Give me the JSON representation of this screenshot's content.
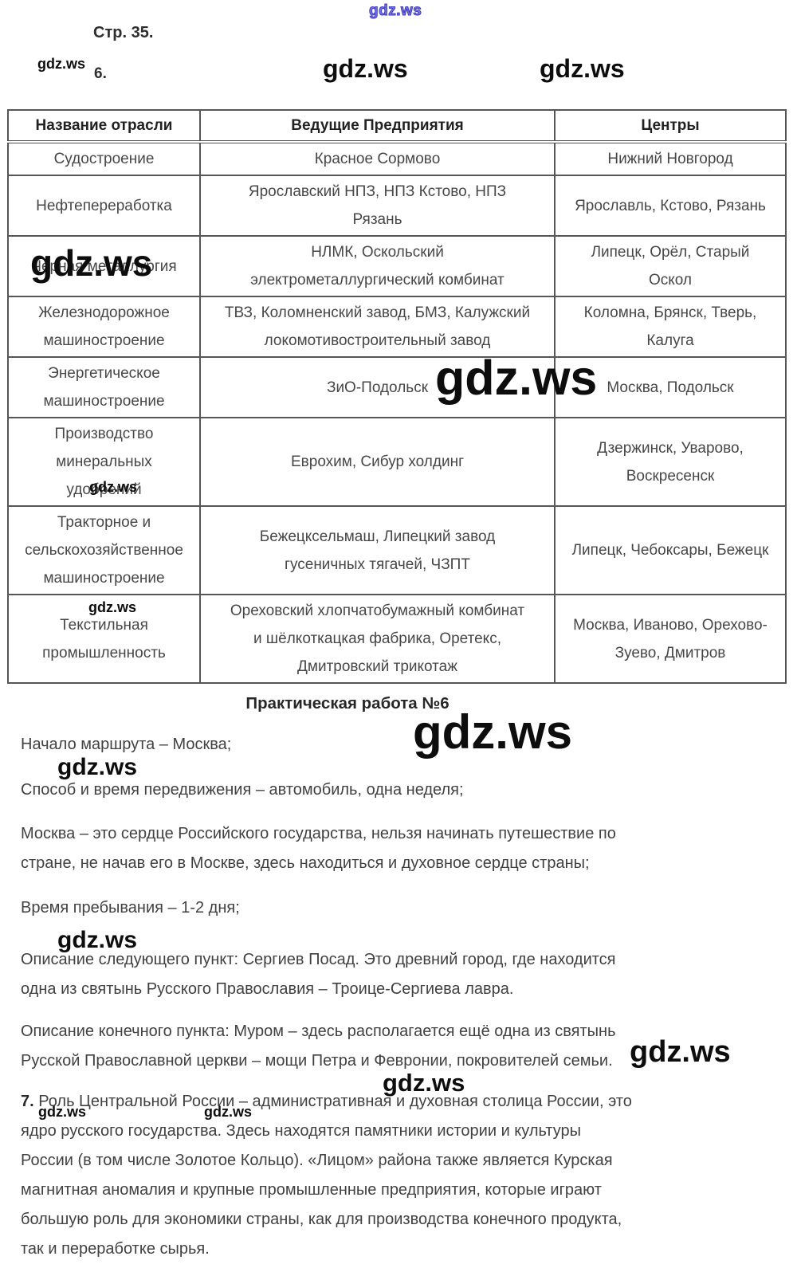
{
  "watermark": {
    "text": "gdz.ws",
    "blue_color": "#3d39c0",
    "black_color": "#0d0d0d"
  },
  "header": {
    "page_label": "Стр. 35.",
    "task_label": "6."
  },
  "table": {
    "headers": [
      "Название отрасли",
      "Ведущие Предприятия",
      "Центры"
    ],
    "rows": [
      {
        "industry": [
          "Судостроение"
        ],
        "enterprises": [
          "Красное Сормово"
        ],
        "centers": [
          "Нижний Новгород"
        ]
      },
      {
        "industry": [
          "Нефтепереработка"
        ],
        "enterprises": [
          "Ярославский НПЗ, НПЗ Кстово, НПЗ",
          "Рязань"
        ],
        "centers": [
          "Ярославль, Кстово, Рязань"
        ]
      },
      {
        "industry": [
          "Черная металлургия"
        ],
        "enterprises": [
          "НЛМК, Оскольский",
          "электрометаллургический комбинат"
        ],
        "centers": [
          "Липецк, Орёл, Старый",
          "Оскол"
        ]
      },
      {
        "industry": [
          "Железнодорожное",
          "машиностроение"
        ],
        "enterprises": [
          "ТВЗ, Коломненский завод, БМЗ, Калужский",
          "локомотивостроительный завод"
        ],
        "centers": [
          "Коломна, Брянск, Тверь,",
          "Калуга"
        ]
      },
      {
        "industry": [
          "Энергетическое",
          "машиностроение"
        ],
        "enterprises": [
          "ЗиО-Подольск"
        ],
        "centers": [
          "Москва, Подольск"
        ]
      },
      {
        "industry": [
          "Производство",
          "минеральных",
          "удобрений"
        ],
        "enterprises": [
          "Еврохим, Сибур холдинг"
        ],
        "centers": [
          "Дзержинск, Уварово,",
          "Воскресенск"
        ]
      },
      {
        "industry": [
          "Тракторное и",
          "сельскохозяйственное",
          "машиностроение"
        ],
        "enterprises": [
          "Бежецксельмаш, Липецкий завод",
          "гусеничных тягачей, ЧЗПТ"
        ],
        "centers": [
          "Липецк, Чебоксары, Бежецк"
        ]
      },
      {
        "industry": [
          "Текстильная",
          "промышленность"
        ],
        "enterprises": [
          "Ореховский хлопчатобумажный комбинат",
          "и шёлкоткацкая фабрика, Оретекс,",
          "Дмитровский трикотаж"
        ],
        "centers": [
          "Москва, Иваново, Орехово-",
          "Зуево, Дмитров"
        ]
      }
    ]
  },
  "practical_work": {
    "title": "Практическая работа №6",
    "paragraphs": [
      [
        "Начало маршрута – Москва;"
      ],
      [
        "Способ и время передвижения – автомобиль, одна неделя;"
      ],
      [
        "Москва – это сердце Российского государства, нельзя начинать путешествие по",
        "стране, не начав его в Москве, здесь находиться и духовное сердце страны;"
      ],
      [
        "Время пребывания – 1-2 дня;"
      ],
      [
        "Описание следующего пункт: Сергиев Посад. Это древний город, где находится",
        "одна из святынь Русского Православия – Троице-Сергиева лавра."
      ],
      [
        "Описание конечного пункта: Муром – здесь располагается ещё одна из святынь",
        "Русской Православной церкви – мощи Петра и Февронии, покровителей семьи."
      ]
    ]
  },
  "task7": {
    "number": "7.",
    "first_line": "Роль Центральной России – административная и духовная столица России, это",
    "continuation_lines": [
      "ядро русского государства. Здесь находятся памятники истории и культуры",
      "России (в том числе Золотое Кольцо). «Лицом» района также является Курская",
      "магнитная аномалия и крупные промышленные предприятия, которые играют",
      "большую роль для экономики страны, как для производства конечного продукта,",
      "так и переработке сырья."
    ]
  }
}
